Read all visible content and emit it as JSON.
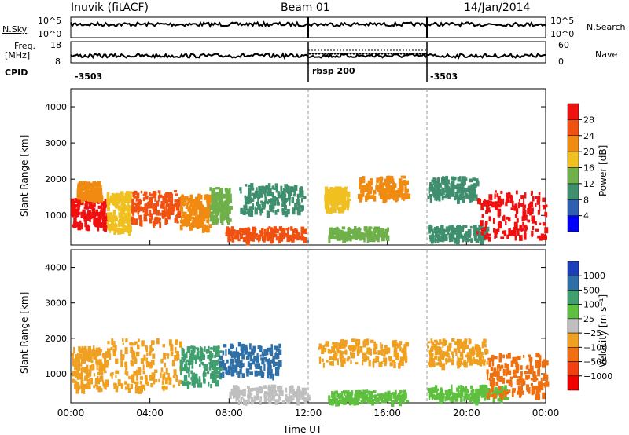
{
  "header": {
    "station": "Inuvik (fitACF)",
    "beam": "Beam 01",
    "date": "14/Jan/2014"
  },
  "top_panels": {
    "nsky_label": "N.Sky",
    "nsky_ticks": [
      "10^5",
      "10^0"
    ],
    "nsearch_label": "N.Search",
    "nsearch_ticks": [
      "10^5",
      "10^0"
    ],
    "freq_label_line1": "Freq.",
    "freq_label_line2": "[MHz]",
    "freq_ticks": [
      "18",
      "8"
    ],
    "nave_label": "Nave",
    "nave_ticks": [
      "60",
      "0"
    ],
    "cpid_label": "CPID",
    "cpid_segments": [
      {
        "label": "-3503",
        "start_hour": 0,
        "end_hour": 12
      },
      {
        "label": "rbsp 200",
        "start_hour": 12,
        "end_hour": 18
      },
      {
        "label": "-3503",
        "start_hour": 18,
        "end_hour": 24
      }
    ]
  },
  "power_colorbar": {
    "label": "Power [dB]",
    "ticks": [
      "4",
      "8",
      "12",
      "16",
      "20",
      "24",
      "28"
    ],
    "colors": [
      "#0000ff",
      "#2f5fb0",
      "#3f8f6f",
      "#6fb04a",
      "#f0c020",
      "#f08a10",
      "#f05010",
      "#f01010"
    ]
  },
  "velocity_colorbar": {
    "label": "Velocity [m s⁻¹]",
    "ticks": [
      "1000",
      "500",
      "100",
      "25",
      "−25",
      "−100",
      "−500",
      "−1000"
    ],
    "colors": [
      "#1a3fb8",
      "#2f6fa8",
      "#3f9f6f",
      "#5fc040",
      "#bfbfbf",
      "#f0a020",
      "#f07010",
      "#f04010",
      "#f00000"
    ]
  },
  "chart_data": {
    "type": "heatmap",
    "xlabel": "Time UT",
    "ylabel": "Slant Range [km]",
    "x_ticks": [
      "00:00",
      "04:00",
      "08:00",
      "12:00",
      "16:00",
      "20:00",
      "00:00"
    ],
    "xlim_hours": [
      0,
      24
    ],
    "ylim": [
      180,
      4500
    ],
    "y_ticks": [
      1000,
      2000,
      3000,
      4000
    ],
    "vertical_markers_hours": [
      12,
      18
    ],
    "panels": [
      {
        "name": "power",
        "regions": [
          {
            "t0": 0.0,
            "t1": 1.8,
            "r0": 700,
            "r1": 1500,
            "v": 28
          },
          {
            "t0": 0.3,
            "t1": 1.5,
            "r0": 1500,
            "r1": 1950,
            "v": 22
          },
          {
            "t0": 1.8,
            "t1": 3.0,
            "r0": 600,
            "r1": 1700,
            "v": 16
          },
          {
            "t0": 3.0,
            "t1": 5.5,
            "r0": 800,
            "r1": 1700,
            "v": 24
          },
          {
            "t0": 5.5,
            "t1": 7.0,
            "r0": 700,
            "r1": 1600,
            "v": 20
          },
          {
            "t0": 7.0,
            "t1": 8.0,
            "r0": 900,
            "r1": 1800,
            "v": 12
          },
          {
            "t0": 7.8,
            "t1": 11.8,
            "r0": 350,
            "r1": 700,
            "v": 26
          },
          {
            "t0": 8.5,
            "t1": 11.8,
            "r0": 1100,
            "r1": 1900,
            "v": 10
          },
          {
            "t0": 12.8,
            "t1": 14.0,
            "r0": 1200,
            "r1": 1800,
            "v": 18
          },
          {
            "t0": 13.0,
            "t1": 16.0,
            "r0": 400,
            "r1": 700,
            "v": 14
          },
          {
            "t0": 14.5,
            "t1": 17.0,
            "r0": 1500,
            "r1": 2100,
            "v": 20
          },
          {
            "t0": 18.0,
            "t1": 21.0,
            "r0": 350,
            "r1": 750,
            "v": 8
          },
          {
            "t0": 18.0,
            "t1": 20.5,
            "r0": 1500,
            "r1": 2100,
            "v": 10
          },
          {
            "t0": 20.5,
            "t1": 24.0,
            "r0": 400,
            "r1": 1700,
            "v": 28
          }
        ]
      },
      {
        "name": "velocity",
        "regions": [
          {
            "t0": 0.0,
            "t1": 1.8,
            "r0": 600,
            "r1": 1800,
            "v": -100
          },
          {
            "t0": 1.8,
            "t1": 5.5,
            "r0": 600,
            "r1": 2000,
            "v": -100
          },
          {
            "t0": 5.5,
            "t1": 7.5,
            "r0": 700,
            "r1": 1800,
            "v": 100
          },
          {
            "t0": 7.5,
            "t1": 10.5,
            "r0": 1000,
            "r1": 1900,
            "v": 500
          },
          {
            "t0": 8.0,
            "t1": 12.0,
            "r0": 250,
            "r1": 700,
            "v": 0
          },
          {
            "t0": 12.5,
            "t1": 17.0,
            "r0": 1300,
            "r1": 2000,
            "v": -100
          },
          {
            "t0": 13.0,
            "t1": 17.0,
            "r0": 250,
            "r1": 550,
            "v": 50
          },
          {
            "t0": 18.0,
            "t1": 22.0,
            "r0": 300,
            "r1": 700,
            "v": 50
          },
          {
            "t0": 18.0,
            "t1": 21.0,
            "r0": 1300,
            "r1": 2000,
            "v": -100
          },
          {
            "t0": 21.0,
            "t1": 24.0,
            "r0": 400,
            "r1": 1600,
            "v": -300
          }
        ]
      }
    ]
  }
}
